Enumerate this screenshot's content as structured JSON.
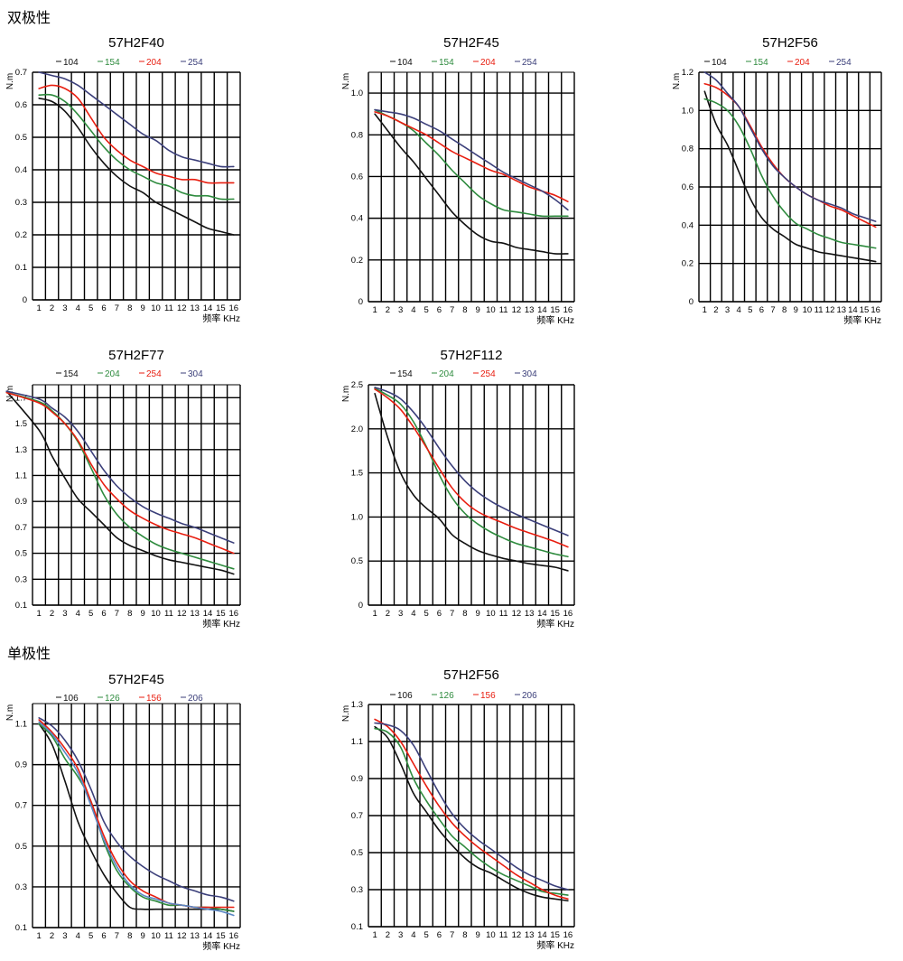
{
  "sections": {
    "bipolar": "双极性",
    "unipolar": "单极性"
  },
  "colors": {
    "s1": "#111111",
    "s2": "#2e8b3e",
    "s3": "#e81e10",
    "s4": "#3b3f7a",
    "s4_alt": "#5b87c4"
  },
  "chart_data": [
    {
      "type": "line",
      "title": "57H2F40",
      "ylabel": "N.m",
      "xlabel": "频率 KHz",
      "x_ticks": [
        "1",
        "2",
        "3",
        "4",
        "5",
        "6",
        "7",
        "8",
        "9",
        "10",
        "11",
        "12",
        "13",
        "14",
        "15",
        "16"
      ],
      "ylim": [
        0,
        0.7
      ],
      "y_ticks": [
        "0",
        "0.1",
        "0.2",
        "0.3",
        "0.4",
        "0.5",
        "0.6",
        "0.7"
      ],
      "grid": true,
      "legend_position": "top",
      "x": [
        1,
        2,
        3,
        4,
        5,
        6,
        7,
        8,
        9,
        10,
        11,
        12,
        13,
        14,
        15,
        16
      ],
      "series": [
        {
          "name": "104",
          "color": "#111111",
          "values": [
            0.62,
            0.61,
            0.58,
            0.53,
            0.47,
            0.42,
            0.38,
            0.35,
            0.33,
            0.3,
            0.28,
            0.26,
            0.24,
            0.22,
            0.21,
            0.2
          ]
        },
        {
          "name": "154",
          "color": "#2e8b3e",
          "values": [
            0.63,
            0.63,
            0.61,
            0.57,
            0.52,
            0.47,
            0.43,
            0.4,
            0.38,
            0.36,
            0.35,
            0.33,
            0.32,
            0.32,
            0.31,
            0.31
          ]
        },
        {
          "name": "204",
          "color": "#e81e10",
          "values": [
            0.65,
            0.66,
            0.65,
            0.62,
            0.56,
            0.5,
            0.46,
            0.43,
            0.41,
            0.39,
            0.38,
            0.37,
            0.37,
            0.36,
            0.36,
            0.36
          ]
        },
        {
          "name": "254",
          "color": "#3b3f7a",
          "values": [
            0.7,
            0.69,
            0.68,
            0.66,
            0.63,
            0.6,
            0.57,
            0.54,
            0.51,
            0.49,
            0.46,
            0.44,
            0.43,
            0.42,
            0.41,
            0.41
          ]
        }
      ]
    },
    {
      "type": "line",
      "title": "57H2F45",
      "ylabel": "N.m",
      "xlabel": "频率 KHz",
      "x_ticks": [
        "1",
        "2",
        "3",
        "4",
        "5",
        "6",
        "7",
        "8",
        "9",
        "10",
        "11",
        "12",
        "13",
        "14",
        "15",
        "16"
      ],
      "ylim": [
        0,
        1.1
      ],
      "y_ticks": [
        "0",
        "0.2",
        "0.4",
        "0.6",
        "0.8",
        "1.0"
      ],
      "grid": true,
      "legend_position": "top",
      "x": [
        1,
        2,
        3,
        4,
        5,
        6,
        7,
        8,
        9,
        10,
        11,
        12,
        13,
        14,
        15,
        16
      ],
      "series": [
        {
          "name": "104",
          "color": "#111111",
          "values": [
            0.9,
            0.82,
            0.74,
            0.67,
            0.59,
            0.51,
            0.43,
            0.37,
            0.32,
            0.29,
            0.28,
            0.26,
            0.25,
            0.24,
            0.23,
            0.23
          ]
        },
        {
          "name": "154",
          "color": "#2e8b3e",
          "values": [
            0.92,
            0.89,
            0.86,
            0.82,
            0.76,
            0.7,
            0.63,
            0.57,
            0.51,
            0.47,
            0.44,
            0.43,
            0.42,
            0.41,
            0.41,
            0.41
          ]
        },
        {
          "name": "204",
          "color": "#e81e10",
          "values": [
            0.91,
            0.89,
            0.86,
            0.83,
            0.8,
            0.76,
            0.72,
            0.69,
            0.66,
            0.63,
            0.61,
            0.58,
            0.55,
            0.53,
            0.51,
            0.48
          ]
        },
        {
          "name": "254",
          "color": "#3b3f7a",
          "values": [
            0.92,
            0.91,
            0.9,
            0.88,
            0.85,
            0.82,
            0.78,
            0.74,
            0.7,
            0.66,
            0.62,
            0.59,
            0.56,
            0.53,
            0.49,
            0.44
          ]
        }
      ]
    },
    {
      "type": "line",
      "title": "57H2F56",
      "ylabel": "N.m",
      "xlabel": "频率 KHz",
      "x_ticks": [
        "1",
        "2",
        "3",
        "4",
        "5",
        "6",
        "7",
        "8",
        "9",
        "10",
        "11",
        "12",
        "13",
        "14",
        "15",
        "16"
      ],
      "ylim": [
        0,
        1.2
      ],
      "y_ticks": [
        "0",
        "0.2",
        "0.4",
        "0.6",
        "0.8",
        "1.0",
        "1.2"
      ],
      "grid": true,
      "legend_position": "top",
      "x": [
        1,
        2,
        3,
        4,
        5,
        6,
        7,
        8,
        9,
        10,
        11,
        12,
        13,
        14,
        15,
        16
      ],
      "series": [
        {
          "name": "104",
          "color": "#111111",
          "values": [
            1.1,
            0.93,
            0.82,
            0.68,
            0.54,
            0.44,
            0.38,
            0.34,
            0.3,
            0.28,
            0.26,
            0.25,
            0.24,
            0.23,
            0.22,
            0.21
          ]
        },
        {
          "name": "154",
          "color": "#2e8b3e",
          "values": [
            1.06,
            1.04,
            1.0,
            0.92,
            0.8,
            0.66,
            0.55,
            0.47,
            0.41,
            0.38,
            0.35,
            0.33,
            0.31,
            0.3,
            0.29,
            0.28
          ]
        },
        {
          "name": "204",
          "color": "#e81e10",
          "values": [
            1.14,
            1.12,
            1.08,
            1.02,
            0.92,
            0.81,
            0.72,
            0.65,
            0.6,
            0.56,
            0.53,
            0.5,
            0.48,
            0.45,
            0.42,
            0.39
          ]
        },
        {
          "name": "254",
          "color": "#3b3f7a",
          "values": [
            1.2,
            1.16,
            1.09,
            1.02,
            0.91,
            0.8,
            0.71,
            0.65,
            0.6,
            0.56,
            0.53,
            0.51,
            0.49,
            0.46,
            0.44,
            0.42
          ]
        }
      ]
    },
    {
      "type": "line",
      "title": "57H2F77",
      "ylabel": "N.m",
      "xlabel": "频率 KHz",
      "x_ticks": [
        "1",
        "2",
        "3",
        "4",
        "5",
        "6",
        "7",
        "8",
        "9",
        "10",
        "11",
        "12",
        "13",
        "14",
        "15",
        "16"
      ],
      "ylim": [
        0.1,
        1.8
      ],
      "y_ticks": [
        "0.1",
        "0.3",
        "0.5",
        "0.7",
        "0.9",
        "1.1",
        "1.3",
        "1.5",
        "1.7"
      ],
      "grid": true,
      "legend_position": "top",
      "x": [
        -1.5,
        1,
        2,
        3,
        4,
        5,
        6,
        7,
        8,
        9,
        10,
        11,
        12,
        13,
        14,
        15,
        16
      ],
      "series": [
        {
          "name": "154",
          "color": "#111111",
          "values": [
            1.75,
            1.45,
            1.25,
            1.08,
            0.92,
            0.82,
            0.72,
            0.62,
            0.56,
            0.52,
            0.48,
            0.45,
            0.43,
            0.41,
            0.39,
            0.37,
            0.34
          ]
        },
        {
          "name": "204",
          "color": "#2e8b3e",
          "values": [
            1.74,
            1.67,
            1.6,
            1.5,
            1.36,
            1.16,
            0.95,
            0.8,
            0.7,
            0.63,
            0.57,
            0.53,
            0.5,
            0.47,
            0.44,
            0.41,
            0.38
          ]
        },
        {
          "name": "254",
          "color": "#e81e10",
          "values": [
            1.74,
            1.66,
            1.59,
            1.5,
            1.37,
            1.19,
            1.03,
            0.92,
            0.83,
            0.77,
            0.72,
            0.68,
            0.65,
            0.62,
            0.58,
            0.54,
            0.5
          ]
        },
        {
          "name": "304",
          "color": "#3b3f7a",
          "values": [
            1.75,
            1.69,
            1.62,
            1.55,
            1.44,
            1.29,
            1.14,
            1.02,
            0.93,
            0.86,
            0.81,
            0.77,
            0.73,
            0.7,
            0.66,
            0.62,
            0.58
          ]
        }
      ]
    },
    {
      "type": "line",
      "title": "57H2F112",
      "ylabel": "N.m",
      "xlabel": "频率 KHz",
      "x_ticks": [
        "1",
        "2",
        "3",
        "4",
        "5",
        "6",
        "7",
        "8",
        "9",
        "10",
        "11",
        "12",
        "13",
        "14",
        "15",
        "16"
      ],
      "ylim": [
        0,
        2.5
      ],
      "y_ticks": [
        "0",
        "0.5",
        "1.0",
        "1.5",
        "2.0",
        "2.5"
      ],
      "grid": true,
      "legend_position": "top",
      "x": [
        1,
        2,
        3,
        4,
        5,
        6,
        7,
        8,
        9,
        10,
        11,
        12,
        13,
        14,
        15,
        16
      ],
      "series": [
        {
          "name": "154",
          "color": "#111111",
          "values": [
            2.4,
            1.9,
            1.5,
            1.25,
            1.1,
            0.98,
            0.8,
            0.7,
            0.62,
            0.57,
            0.53,
            0.5,
            0.47,
            0.45,
            0.43,
            0.39
          ]
        },
        {
          "name": "204",
          "color": "#2e8b3e",
          "values": [
            2.46,
            2.38,
            2.28,
            2.08,
            1.8,
            1.48,
            1.22,
            1.04,
            0.92,
            0.83,
            0.76,
            0.7,
            0.66,
            0.62,
            0.58,
            0.55
          ]
        },
        {
          "name": "254",
          "color": "#e81e10",
          "values": [
            2.45,
            2.35,
            2.22,
            2.02,
            1.79,
            1.55,
            1.33,
            1.17,
            1.06,
            0.99,
            0.93,
            0.87,
            0.82,
            0.77,
            0.72,
            0.66
          ]
        },
        {
          "name": "304",
          "color": "#3b3f7a",
          "values": [
            2.47,
            2.42,
            2.34,
            2.19,
            2.0,
            1.78,
            1.58,
            1.41,
            1.28,
            1.18,
            1.1,
            1.03,
            0.97,
            0.91,
            0.85,
            0.79
          ]
        }
      ]
    },
    {
      "type": "line",
      "title": "57H2F45",
      "ylabel": "N.m",
      "xlabel": "频率 KHz",
      "x_ticks": [
        "1",
        "2",
        "3",
        "4",
        "5",
        "6",
        "7",
        "8",
        "9",
        "10",
        "11",
        "12",
        "13",
        "14",
        "15",
        "16"
      ],
      "ylim": [
        0.1,
        1.2
      ],
      "y_ticks": [
        "0.1",
        "0.3",
        "0.5",
        "0.7",
        "0.9",
        "1.1"
      ],
      "grid": true,
      "legend_position": "top",
      "x": [
        1,
        2,
        3,
        4,
        5,
        6,
        7,
        8,
        9,
        10,
        11,
        12,
        13,
        14,
        15,
        16
      ],
      "series": [
        {
          "name": "106",
          "color": "#111111",
          "values": [
            1.1,
            1.0,
            0.82,
            0.62,
            0.48,
            0.36,
            0.27,
            0.2,
            0.19,
            0.19,
            0.19,
            0.19,
            0.19,
            0.19,
            0.19,
            0.18
          ]
        },
        {
          "name": "126",
          "color": "#2e8b3e",
          "values": [
            1.1,
            1.04,
            0.93,
            0.84,
            0.72,
            0.52,
            0.38,
            0.3,
            0.25,
            0.23,
            0.21,
            0.21,
            0.2,
            0.2,
            0.19,
            0.18
          ]
        },
        {
          "name": "156",
          "color": "#e81e10",
          "values": [
            1.12,
            1.06,
            0.98,
            0.88,
            0.72,
            0.55,
            0.42,
            0.33,
            0.28,
            0.25,
            0.22,
            0.21,
            0.2,
            0.2,
            0.2,
            0.2
          ]
        },
        {
          "name": "206",
          "color": "#3b3f7a",
          "values": [
            1.13,
            1.09,
            1.02,
            0.92,
            0.78,
            0.62,
            0.52,
            0.45,
            0.4,
            0.36,
            0.33,
            0.3,
            0.28,
            0.26,
            0.25,
            0.23
          ]
        },
        {
          "name": "",
          "color": "#5b87c4",
          "values": [
            1.11,
            1.05,
            0.96,
            0.86,
            0.7,
            0.53,
            0.4,
            0.31,
            0.26,
            0.24,
            0.22,
            0.21,
            0.2,
            0.19,
            0.18,
            0.16
          ]
        }
      ]
    },
    {
      "type": "line",
      "title": "57H2F56",
      "ylabel": "N.m",
      "xlabel": "频率 KHz",
      "x_ticks": [
        "1",
        "2",
        "3",
        "4",
        "5",
        "6",
        "7",
        "8",
        "9",
        "10",
        "11",
        "12",
        "13",
        "14",
        "15",
        "16"
      ],
      "ylim": [
        0.1,
        1.3
      ],
      "y_ticks": [
        "0.1",
        "0.3",
        "0.5",
        "0.7",
        "0.9",
        "1.1",
        "1.3"
      ],
      "grid": true,
      "legend_position": "top",
      "x": [
        1,
        2,
        3,
        4,
        5,
        6,
        7,
        8,
        9,
        10,
        11,
        12,
        13,
        14,
        15,
        16
      ],
      "series": [
        {
          "name": "106",
          "color": "#111111",
          "values": [
            1.18,
            1.12,
            0.98,
            0.82,
            0.72,
            0.62,
            0.54,
            0.47,
            0.42,
            0.39,
            0.35,
            0.31,
            0.28,
            0.26,
            0.25,
            0.24
          ]
        },
        {
          "name": "126",
          "color": "#2e8b3e",
          "values": [
            1.17,
            1.15,
            1.07,
            0.9,
            0.78,
            0.68,
            0.59,
            0.53,
            0.47,
            0.42,
            0.38,
            0.35,
            0.32,
            0.29,
            0.28,
            0.27
          ]
        },
        {
          "name": "156",
          "color": "#e81e10",
          "values": [
            1.22,
            1.18,
            1.1,
            0.98,
            0.86,
            0.75,
            0.66,
            0.59,
            0.53,
            0.48,
            0.43,
            0.38,
            0.34,
            0.3,
            0.27,
            0.25
          ]
        },
        {
          "name": "206",
          "color": "#3b3f7a",
          "values": [
            1.2,
            1.19,
            1.16,
            1.08,
            0.95,
            0.82,
            0.71,
            0.63,
            0.57,
            0.52,
            0.47,
            0.42,
            0.38,
            0.35,
            0.32,
            0.3
          ]
        }
      ]
    }
  ]
}
